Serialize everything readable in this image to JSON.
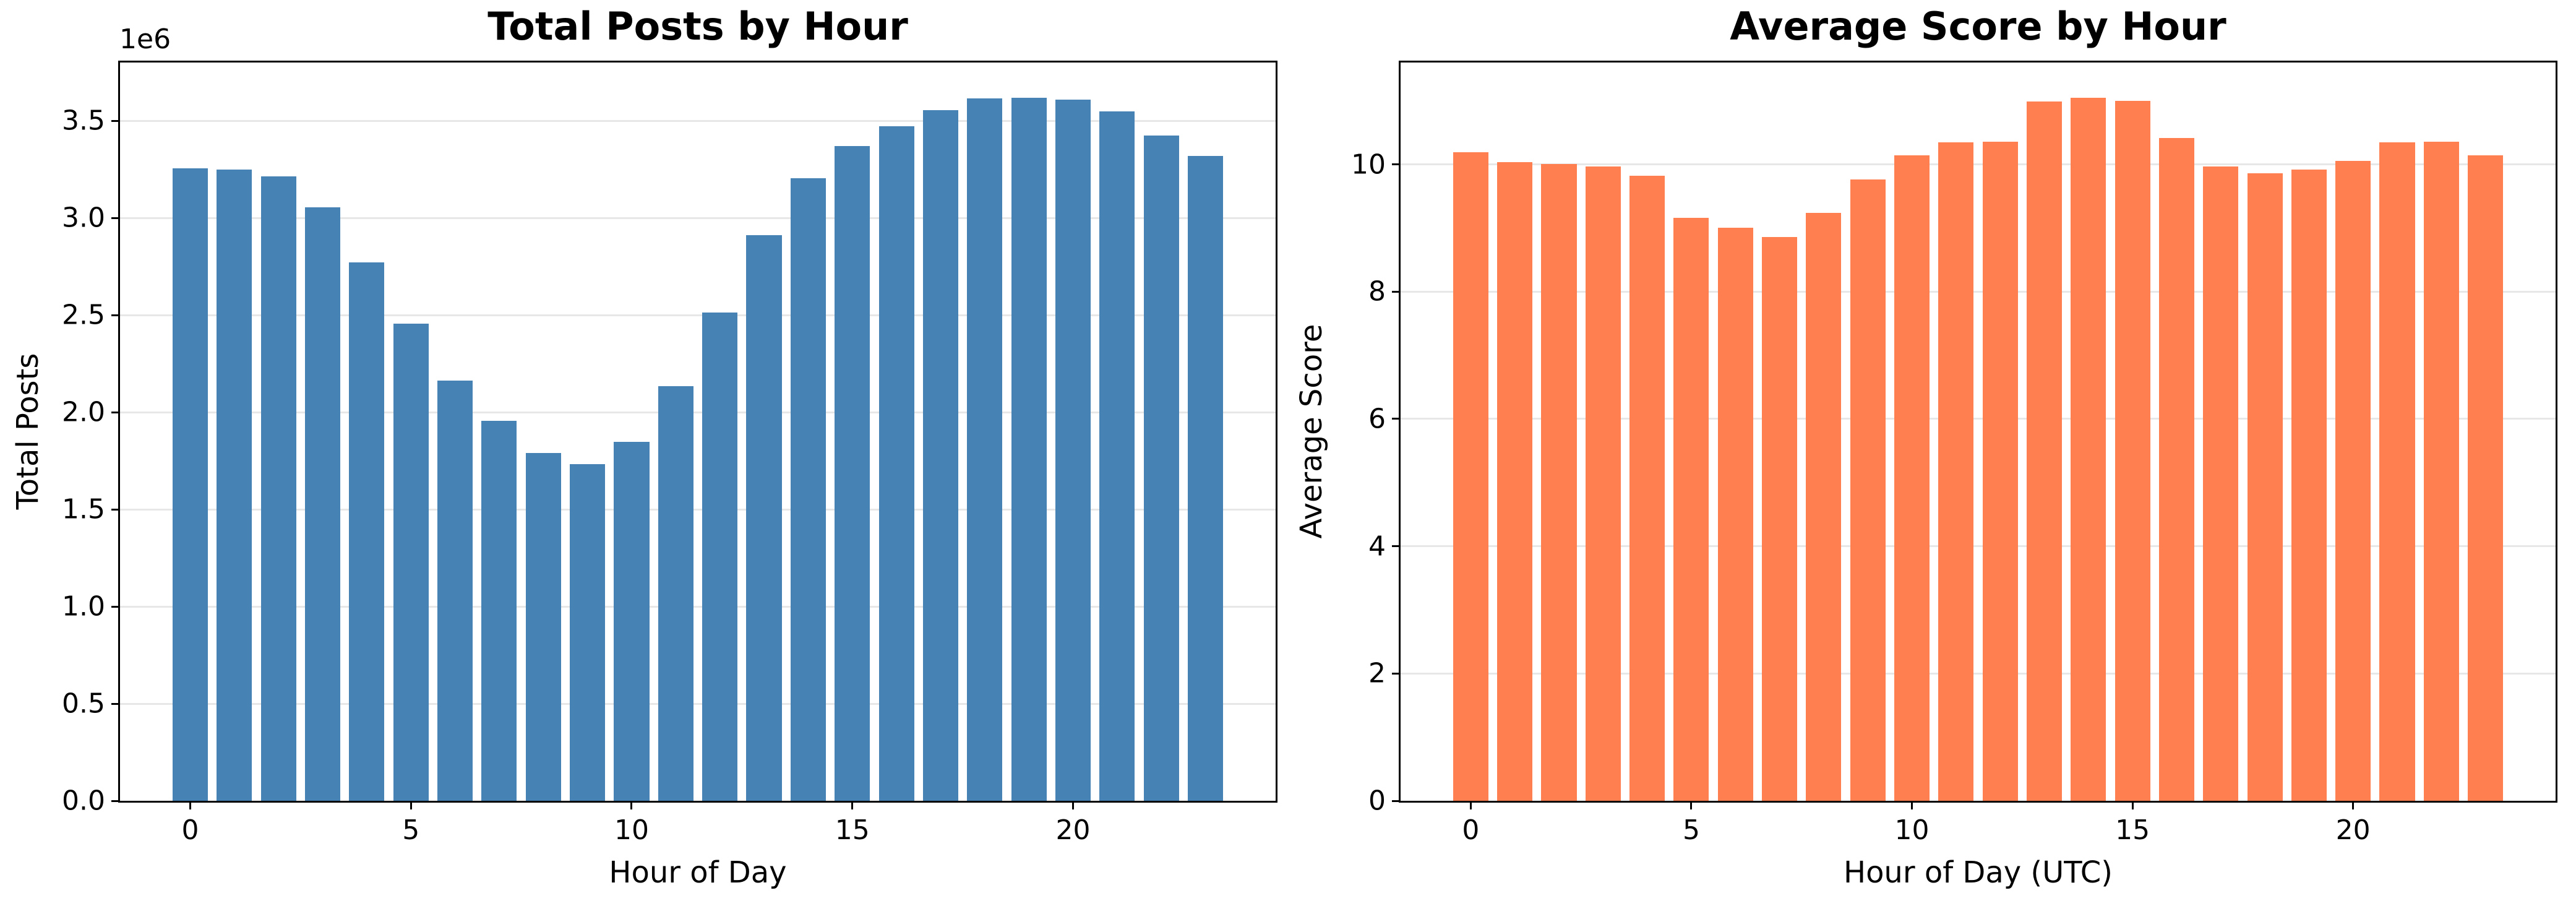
{
  "figure": {
    "background_color": "#ffffff",
    "grid_color": "#e7e7e7",
    "spine_color": "#000000"
  },
  "chart_data": [
    {
      "type": "bar",
      "title": "Total Posts by Hour",
      "xlabel": "Hour of Day",
      "ylabel": "Total Posts",
      "y_offset_text": "1e6",
      "bar_color": "#4682B4",
      "x": [
        0,
        1,
        2,
        3,
        4,
        5,
        6,
        7,
        8,
        9,
        10,
        11,
        12,
        13,
        14,
        15,
        16,
        17,
        18,
        19,
        20,
        21,
        22,
        23
      ],
      "values": [
        3255000,
        3248000,
        3214000,
        3056000,
        2770000,
        2456000,
        2164000,
        1956000,
        1790000,
        1732000,
        1848000,
        2135000,
        2514000,
        2911000,
        3204000,
        3370000,
        3473000,
        3556000,
        3614000,
        3620000,
        3610000,
        3547000,
        3424000,
        3319000
      ],
      "xticks": [
        0,
        5,
        10,
        15,
        20
      ],
      "xtick_labels": [
        "0",
        "5",
        "10",
        "15",
        "20"
      ],
      "yticks": [
        0,
        500000,
        1000000,
        1500000,
        2000000,
        2500000,
        3000000,
        3500000
      ],
      "ytick_labels": [
        "0.0",
        "0.5",
        "1.0",
        "1.5",
        "2.0",
        "2.5",
        "3.0",
        "3.5"
      ],
      "xlim": [
        -1.59,
        24.59
      ],
      "ylim": [
        0,
        3800000
      ],
      "bar_width": 0.8,
      "grid": true,
      "legend_position": "none"
    },
    {
      "type": "bar",
      "title": "Average Score by Hour",
      "xlabel": "Hour of Day (UTC)",
      "ylabel": "Average Score",
      "bar_color": "#FF7F50",
      "x": [
        0,
        1,
        2,
        3,
        4,
        5,
        6,
        7,
        8,
        9,
        10,
        11,
        12,
        13,
        14,
        15,
        16,
        17,
        18,
        19,
        20,
        21,
        22,
        23
      ],
      "values": [
        10.19,
        10.03,
        10.01,
        9.97,
        9.82,
        9.16,
        9.0,
        8.86,
        9.24,
        9.76,
        10.14,
        10.35,
        10.36,
        10.99,
        11.05,
        11.0,
        10.41,
        9.97,
        9.86,
        9.92,
        10.05,
        10.35,
        10.36,
        10.14
      ],
      "xticks": [
        0,
        5,
        10,
        15,
        20
      ],
      "xtick_labels": [
        "0",
        "5",
        "10",
        "15",
        "20"
      ],
      "yticks": [
        0,
        2,
        4,
        6,
        8,
        10
      ],
      "ytick_labels": [
        "0",
        "2",
        "4",
        "6",
        "8",
        "10"
      ],
      "xlim": [
        -1.59,
        24.59
      ],
      "ylim": [
        0,
        11.6
      ],
      "bar_width": 0.8,
      "grid": true,
      "legend_position": "none"
    }
  ]
}
